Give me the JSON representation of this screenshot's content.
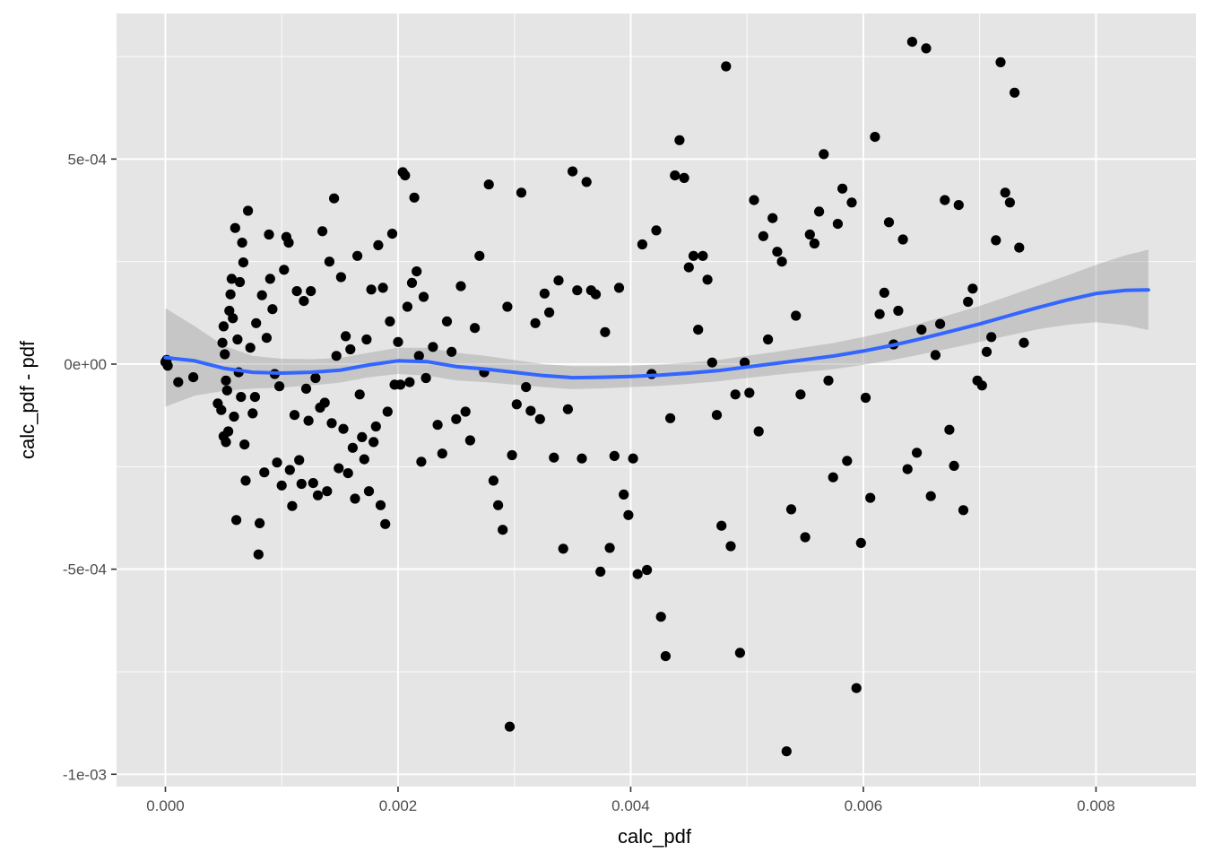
{
  "chart_data": {
    "type": "scatter",
    "title": "",
    "xlabel": "calc_pdf",
    "ylabel": "calc_pdf - pdf",
    "xlim": [
      -0.00042,
      0.00886
    ],
    "ylim": [
      -0.00103,
      0.000855
    ],
    "x_ticks": [
      0,
      0.002,
      0.004,
      0.006,
      0.008
    ],
    "x_tick_labels": [
      "0.000",
      "0.002",
      "0.004",
      "0.006",
      "0.008"
    ],
    "y_ticks": [
      0.0005,
      0,
      -0.0005,
      -0.001
    ],
    "y_tick_labels": [
      "5e-04",
      "0e+00",
      "-5e-04",
      "-1e-03"
    ],
    "grid": true,
    "legend": "none",
    "colors": {
      "panel": "#e5e5e5",
      "grid": "#ffffff",
      "points": "#000000",
      "smooth_line": "#3366ff",
      "ribbon": "#999999"
    },
    "points": [
      [
        0.0,
        5e-06
      ],
      [
        1e-05,
        1e-05
      ],
      [
        2e-05,
        -4e-06
      ],
      [
        0.00011,
        -4.4e-05
      ],
      [
        0.00024,
        -3.2e-05
      ],
      [
        0.00045,
        -9.6e-05
      ],
      [
        0.00048,
        -0.000112
      ],
      [
        0.0005,
        -0.000176
      ],
      [
        0.00052,
        -0.00019
      ],
      [
        0.00054,
        -0.000164
      ],
      [
        0.00049,
        5.2e-05
      ],
      [
        0.0005,
        9.2e-05
      ],
      [
        0.00051,
        2.4e-05
      ],
      [
        0.00052,
        -4e-05
      ],
      [
        0.00053,
        -6.4e-05
      ],
      [
        0.00055,
        0.00013
      ],
      [
        0.00056,
        0.00017
      ],
      [
        0.00057,
        0.000208
      ],
      [
        0.00058,
        0.000112
      ],
      [
        0.00059,
        -0.000128
      ],
      [
        0.0006,
        0.000332
      ],
      [
        0.00061,
        -0.00038
      ],
      [
        0.00062,
        6e-05
      ],
      [
        0.00063,
        -2e-05
      ],
      [
        0.00064,
        0.0002
      ],
      [
        0.00065,
        -8e-05
      ],
      [
        0.00066,
        0.000296
      ],
      [
        0.00067,
        0.000248
      ],
      [
        0.00068,
        -0.000196
      ],
      [
        0.00069,
        -0.000284
      ],
      [
        0.00071,
        0.000374
      ],
      [
        0.00073,
        4e-05
      ],
      [
        0.00075,
        -0.00012
      ],
      [
        0.00077,
        -8e-05
      ],
      [
        0.00078,
        0.0001
      ],
      [
        0.0008,
        -0.000464
      ],
      [
        0.00081,
        -0.000388
      ],
      [
        0.00083,
        0.000168
      ],
      [
        0.00085,
        -0.000264
      ],
      [
        0.00087,
        6.4e-05
      ],
      [
        0.00089,
        0.000316
      ],
      [
        0.0009,
        0.000208
      ],
      [
        0.00092,
        0.000134
      ],
      [
        0.00094,
        -2.4e-05
      ],
      [
        0.00096,
        -0.00024
      ],
      [
        0.00098,
        -5.4e-05
      ],
      [
        0.001,
        -0.000296
      ],
      [
        0.00102,
        0.00023
      ],
      [
        0.00104,
        0.00031
      ],
      [
        0.00106,
        0.000296
      ],
      [
        0.00107,
        -0.000258
      ],
      [
        0.00109,
        -0.000346
      ],
      [
        0.00111,
        -0.000124
      ],
      [
        0.00113,
        0.000178
      ],
      [
        0.00115,
        -0.000234
      ],
      [
        0.00117,
        -0.000292
      ],
      [
        0.00119,
        0.000154
      ],
      [
        0.00121,
        -6e-05
      ],
      [
        0.00123,
        -0.000138
      ],
      [
        0.00125,
        0.000178
      ],
      [
        0.00127,
        -0.00029
      ],
      [
        0.00129,
        -3.4e-05
      ],
      [
        0.00131,
        -0.00032
      ],
      [
        0.00133,
        -0.000106
      ],
      [
        0.00135,
        0.000324
      ],
      [
        0.00137,
        -9.4e-05
      ],
      [
        0.00139,
        -0.00031
      ],
      [
        0.00141,
        0.00025
      ],
      [
        0.00143,
        -0.000144
      ],
      [
        0.00145,
        0.000404
      ],
      [
        0.00147,
        2e-05
      ],
      [
        0.00149,
        -0.000254
      ],
      [
        0.00151,
        0.000212
      ],
      [
        0.00153,
        -0.000158
      ],
      [
        0.00155,
        6.8e-05
      ],
      [
        0.00157,
        -0.000266
      ],
      [
        0.00159,
        3.6e-05
      ],
      [
        0.00161,
        -0.000204
      ],
      [
        0.00163,
        -0.000328
      ],
      [
        0.00165,
        0.000264
      ],
      [
        0.00167,
        -7.4e-05
      ],
      [
        0.00169,
        -0.000178
      ],
      [
        0.00171,
        -0.000232
      ],
      [
        0.00173,
        6e-05
      ],
      [
        0.00175,
        -0.00031
      ],
      [
        0.00177,
        0.000182
      ],
      [
        0.00179,
        -0.00019
      ],
      [
        0.00181,
        -0.000152
      ],
      [
        0.00183,
        0.00029
      ],
      [
        0.00185,
        -0.000344
      ],
      [
        0.00187,
        0.000186
      ],
      [
        0.00189,
        -0.00039
      ],
      [
        0.00191,
        -0.000116
      ],
      [
        0.00193,
        0.000104
      ],
      [
        0.00195,
        0.000318
      ],
      [
        0.00197,
        -5e-05
      ],
      [
        0.002,
        5.4e-05
      ],
      [
        0.00202,
        -5e-05
      ],
      [
        0.00204,
        0.000468
      ],
      [
        0.00206,
        0.00046
      ],
      [
        0.00208,
        0.00014
      ],
      [
        0.0021,
        -4.4e-05
      ],
      [
        0.00212,
        0.000198
      ],
      [
        0.00214,
        0.000406
      ],
      [
        0.00216,
        0.000226
      ],
      [
        0.00218,
        2e-05
      ],
      [
        0.0022,
        -0.000238
      ],
      [
        0.00222,
        0.000164
      ],
      [
        0.00224,
        -3.4e-05
      ],
      [
        0.0023,
        4.2e-05
      ],
      [
        0.00234,
        -0.000148
      ],
      [
        0.00238,
        -0.000218
      ],
      [
        0.00242,
        0.000104
      ],
      [
        0.00246,
        3e-05
      ],
      [
        0.0025,
        -0.000134
      ],
      [
        0.00254,
        0.00019
      ],
      [
        0.00258,
        -0.000116
      ],
      [
        0.00262,
        -0.000186
      ],
      [
        0.00266,
        8.8e-05
      ],
      [
        0.0027,
        0.000264
      ],
      [
        0.00274,
        -2e-05
      ],
      [
        0.00278,
        0.000438
      ],
      [
        0.00282,
        -0.000284
      ],
      [
        0.00286,
        -0.000344
      ],
      [
        0.0029,
        -0.000404
      ],
      [
        0.00294,
        0.00014
      ],
      [
        0.00296,
        -0.000884
      ],
      [
        0.00298,
        -0.000222
      ],
      [
        0.00302,
        -9.8e-05
      ],
      [
        0.00306,
        0.000418
      ],
      [
        0.0031,
        -5.6e-05
      ],
      [
        0.00314,
        -0.000114
      ],
      [
        0.00318,
        0.0001
      ],
      [
        0.00322,
        -0.000134
      ],
      [
        0.00326,
        0.000172
      ],
      [
        0.0033,
        0.000126
      ],
      [
        0.00334,
        -0.000228
      ],
      [
        0.00338,
        0.000204
      ],
      [
        0.00342,
        -0.00045
      ],
      [
        0.00346,
        -0.00011
      ],
      [
        0.0035,
        0.00047
      ],
      [
        0.00354,
        0.00018
      ],
      [
        0.00358,
        -0.00023
      ],
      [
        0.00362,
        0.000444
      ],
      [
        0.00366,
        0.00018
      ],
      [
        0.0037,
        0.00017
      ],
      [
        0.00374,
        -0.000506
      ],
      [
        0.00378,
        7.8e-05
      ],
      [
        0.00382,
        -0.000448
      ],
      [
        0.00386,
        -0.000224
      ],
      [
        0.0039,
        0.000186
      ],
      [
        0.00394,
        -0.000318
      ],
      [
        0.00398,
        -0.000368
      ],
      [
        0.00402,
        -0.00023
      ],
      [
        0.00406,
        -0.000512
      ],
      [
        0.0041,
        0.000292
      ],
      [
        0.00414,
        -0.000502
      ],
      [
        0.00418,
        -2.4e-05
      ],
      [
        0.00422,
        0.000326
      ],
      [
        0.00426,
        -0.000616
      ],
      [
        0.0043,
        -0.000712
      ],
      [
        0.00434,
        -0.000132
      ],
      [
        0.00438,
        0.00046
      ],
      [
        0.00442,
        0.000546
      ],
      [
        0.00446,
        0.000454
      ],
      [
        0.0045,
        0.000236
      ],
      [
        0.00454,
        0.000264
      ],
      [
        0.00458,
        8.4e-05
      ],
      [
        0.00462,
        0.000264
      ],
      [
        0.00466,
        0.000206
      ],
      [
        0.0047,
        4e-06
      ],
      [
        0.00474,
        -0.000124
      ],
      [
        0.00478,
        -0.000394
      ],
      [
        0.00482,
        0.000726
      ],
      [
        0.00486,
        -0.000444
      ],
      [
        0.0049,
        -7.4e-05
      ],
      [
        0.00494,
        -0.000704
      ],
      [
        0.00498,
        4e-06
      ],
      [
        0.00502,
        -7e-05
      ],
      [
        0.00506,
        0.0004
      ],
      [
        0.0051,
        -0.000164
      ],
      [
        0.00514,
        0.000312
      ],
      [
        0.00518,
        6e-05
      ],
      [
        0.00522,
        0.000356
      ],
      [
        0.00526,
        0.000274
      ],
      [
        0.0053,
        0.00025
      ],
      [
        0.00534,
        -0.000944
      ],
      [
        0.00538,
        -0.000354
      ],
      [
        0.00542,
        0.000118
      ],
      [
        0.00546,
        -7.4e-05
      ],
      [
        0.0055,
        -0.000422
      ],
      [
        0.00554,
        0.000316
      ],
      [
        0.00558,
        0.000294
      ],
      [
        0.00562,
        0.000372
      ],
      [
        0.00566,
        0.000512
      ],
      [
        0.0057,
        -4e-05
      ],
      [
        0.00574,
        -0.000276
      ],
      [
        0.00578,
        0.000342
      ],
      [
        0.00582,
        0.000428
      ],
      [
        0.00586,
        -0.000236
      ],
      [
        0.0059,
        0.000394
      ],
      [
        0.00594,
        -0.00079
      ],
      [
        0.00598,
        -0.000436
      ],
      [
        0.00602,
        -8.2e-05
      ],
      [
        0.00606,
        -0.000326
      ],
      [
        0.0061,
        0.000554
      ],
      [
        0.00614,
        0.000122
      ],
      [
        0.00618,
        0.000174
      ],
      [
        0.00622,
        0.000346
      ],
      [
        0.00626,
        4.8e-05
      ],
      [
        0.0063,
        0.00013
      ],
      [
        0.00634,
        0.000304
      ],
      [
        0.00638,
        -0.000256
      ],
      [
        0.00642,
        0.000786
      ],
      [
        0.00646,
        -0.000216
      ],
      [
        0.0065,
        8.4e-05
      ],
      [
        0.00654,
        0.00077
      ],
      [
        0.00658,
        -0.000322
      ],
      [
        0.00662,
        2.2e-05
      ],
      [
        0.00666,
        9.8e-05
      ],
      [
        0.0067,
        0.0004
      ],
      [
        0.00674,
        -0.00016
      ],
      [
        0.00678,
        -0.000248
      ],
      [
        0.00682,
        0.000388
      ],
      [
        0.00686,
        -0.000356
      ],
      [
        0.0069,
        0.000152
      ],
      [
        0.00694,
        0.000184
      ],
      [
        0.00698,
        -4e-05
      ],
      [
        0.00702,
        -5.2e-05
      ],
      [
        0.00706,
        3e-05
      ],
      [
        0.0071,
        6.6e-05
      ],
      [
        0.00714,
        0.000302
      ],
      [
        0.00718,
        0.000736
      ],
      [
        0.00722,
        0.000418
      ],
      [
        0.00726,
        0.000394
      ],
      [
        0.0073,
        0.000662
      ],
      [
        0.00734,
        0.000284
      ],
      [
        0.00738,
        5.2e-05
      ]
    ],
    "smooth_fit": {
      "method": "loess",
      "x": [
        0.0,
        0.00025,
        0.0005,
        0.00075,
        0.001,
        0.00125,
        0.0015,
        0.00175,
        0.002,
        0.00225,
        0.0025,
        0.00275,
        0.003,
        0.00325,
        0.0035,
        0.00375,
        0.004,
        0.00425,
        0.0045,
        0.00475,
        0.005,
        0.00525,
        0.0055,
        0.00575,
        0.006,
        0.00625,
        0.0065,
        0.00675,
        0.007,
        0.00725,
        0.0075,
        0.00775,
        0.008,
        0.00825,
        0.00845
      ],
      "y": [
        1.6e-05,
        8e-06,
        -1e-05,
        -2e-05,
        -2.2e-05,
        -2e-05,
        -1.5e-05,
        -2e-06,
        8e-06,
        6e-06,
        -6e-06,
        -1.2e-05,
        -2e-05,
        -2.8e-05,
        -3.3e-05,
        -3.2e-05,
        -3e-05,
        -2.7e-05,
        -2.2e-05,
        -1.6e-05,
        -7e-06,
        2e-06,
        1.1e-05,
        2e-05,
        3.2e-05,
        4.6e-05,
        6.2e-05,
        8e-05,
        9.8e-05,
        0.000118,
        0.000138,
        0.000156,
        0.000172,
        0.00018,
        0.000181
      ],
      "ribbon_half_width": [
        0.00012,
        8.5e-05,
        5.5e-05,
        4e-05,
        3.5e-05,
        3.2e-05,
        3e-05,
        3e-05,
        3.2e-05,
        3.4e-05,
        3.4e-05,
        3.2e-05,
        3e-05,
        2.8e-05,
        2.8e-05,
        2.7e-05,
        2.6e-05,
        2.6e-05,
        2.6e-05,
        2.6e-05,
        2.7e-05,
        2.8e-05,
        3e-05,
        3.2e-05,
        3.4e-05,
        3.6e-05,
        3.8e-05,
        4.1e-05,
        4.4e-05,
        4.8e-05,
        5.3e-05,
        6e-05,
        7e-05,
        8.5e-05,
        9.8e-05
      ]
    }
  }
}
